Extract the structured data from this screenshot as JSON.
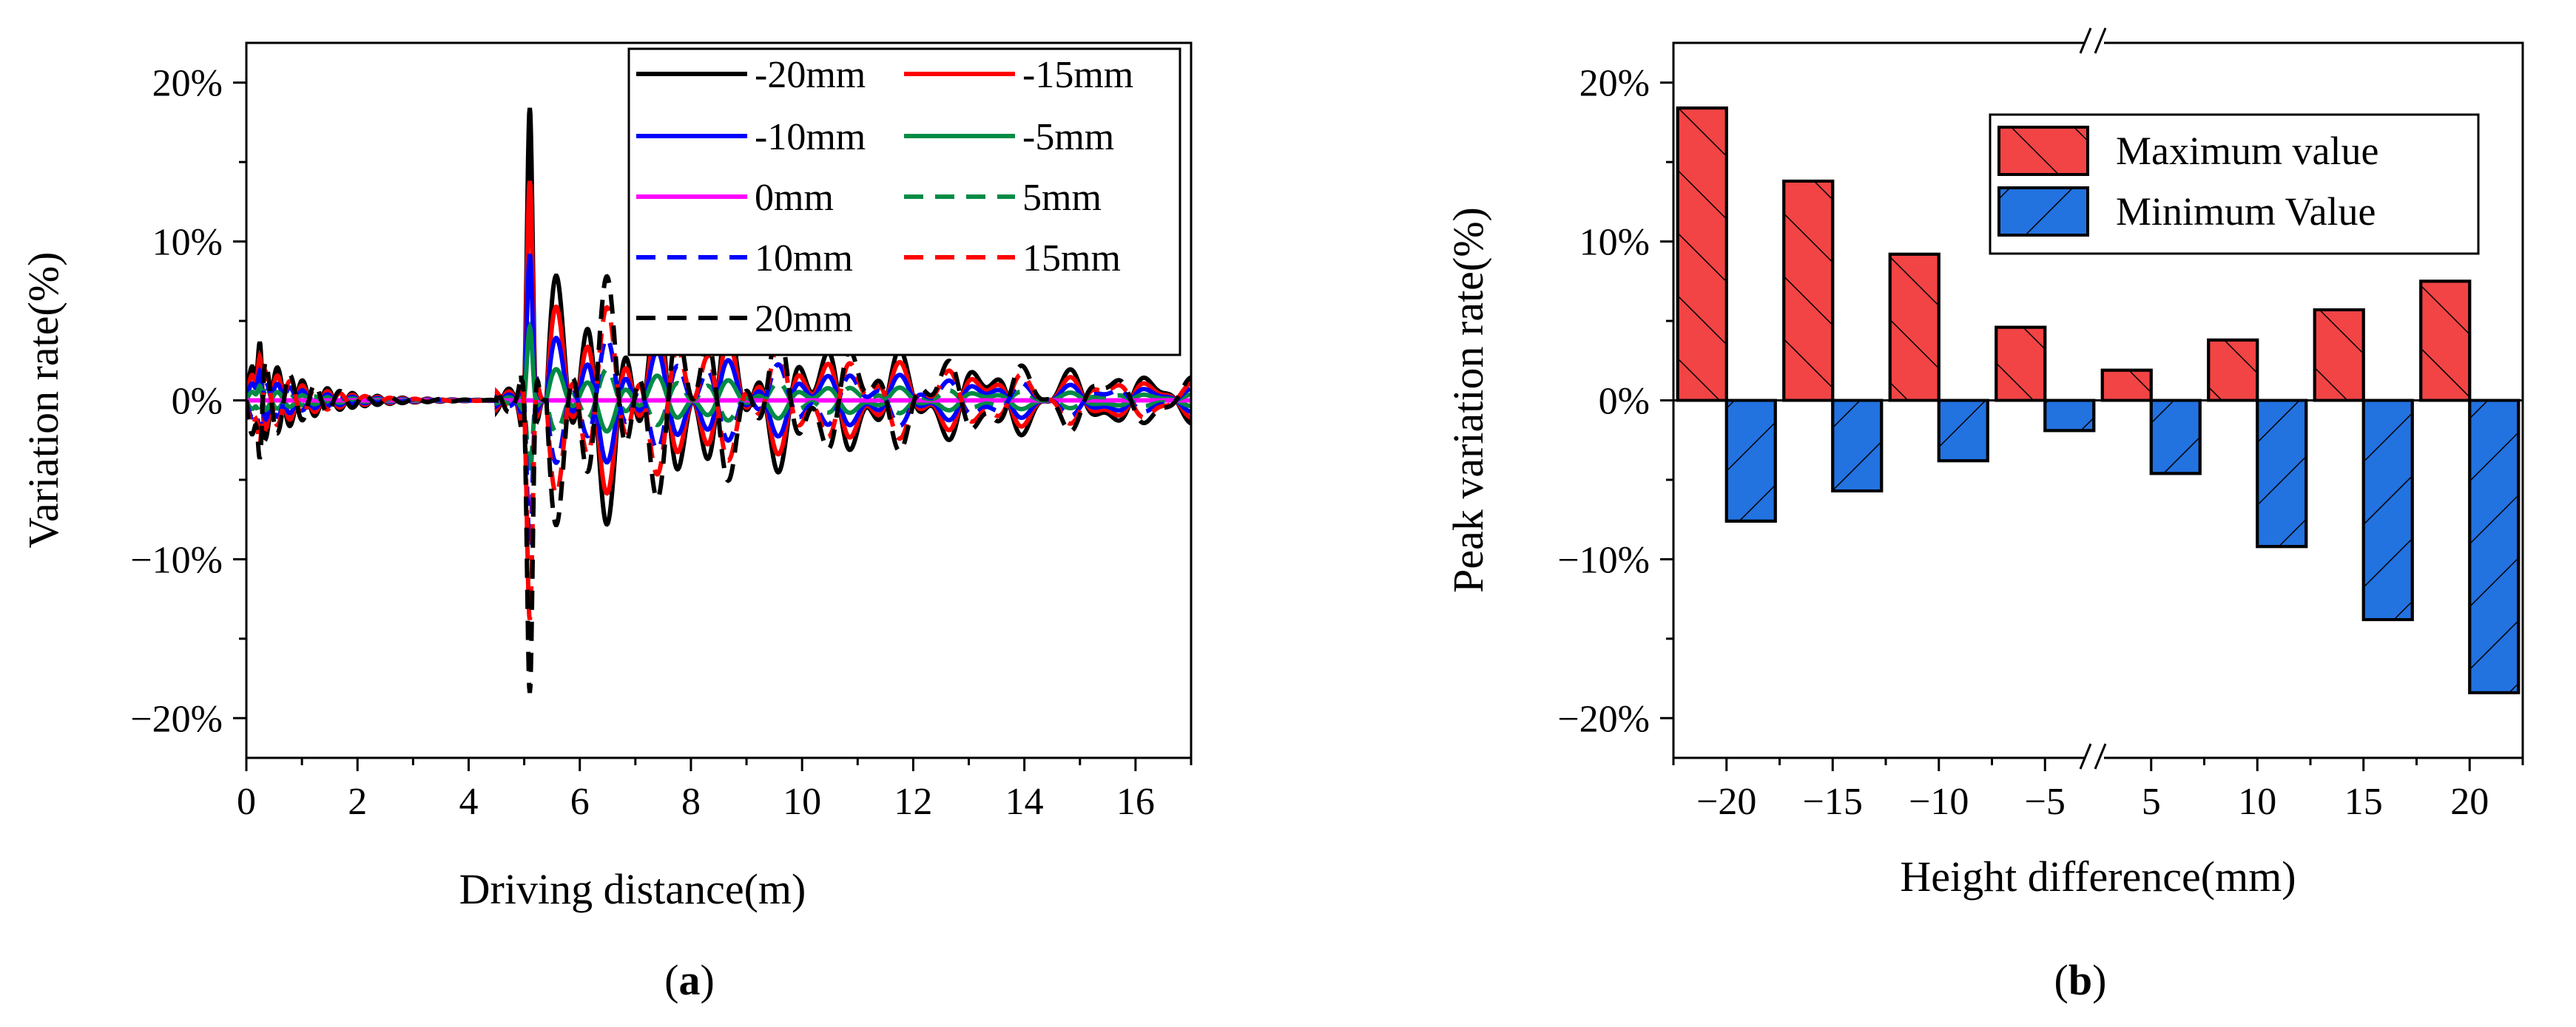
{
  "charts": {
    "a": {
      "label": "a",
      "type": "line",
      "xlabel": "Driving distance(m)",
      "ylabel": "Variation rate(%)",
      "xlim": [
        0,
        17
      ],
      "ylim": [
        -22.5,
        22.5
      ],
      "xticks": [
        {
          "value": 0,
          "label": "0"
        },
        {
          "value": 2,
          "label": "2"
        },
        {
          "value": 4,
          "label": "4"
        },
        {
          "value": 6,
          "label": "6"
        },
        {
          "value": 8,
          "label": "8"
        },
        {
          "value": 10,
          "label": "10"
        },
        {
          "value": 12,
          "label": "12"
        },
        {
          "value": 14,
          "label": "14"
        },
        {
          "value": 16,
          "label": "16"
        }
      ],
      "yticks": [
        {
          "value": 20,
          "label": "20%"
        },
        {
          "value": 10,
          "label": "10%"
        },
        {
          "value": 0,
          "label": "0%"
        },
        {
          "value": -10,
          "label": "−10%"
        },
        {
          "value": -20,
          "label": "−20%"
        }
      ],
      "series": [
        {
          "name": "-20mm",
          "height": -20,
          "color": "#000000",
          "dash": "solid"
        },
        {
          "name": "-15mm",
          "height": -15,
          "color": "#ff0000",
          "dash": "solid"
        },
        {
          "name": "-10mm",
          "height": -10,
          "color": "#0000ff",
          "dash": "solid"
        },
        {
          "name": "-5mm",
          "height": -5,
          "color": "#008b45",
          "dash": "solid"
        },
        {
          "name": "0mm",
          "height": 0,
          "color": "#ff00ff",
          "dash": "solid"
        },
        {
          "name": "5mm",
          "height": 5,
          "color": "#008b45",
          "dash": "dashed"
        },
        {
          "name": "10mm",
          "height": 10,
          "color": "#0000ff",
          "dash": "dashed"
        },
        {
          "name": "15mm",
          "height": 15,
          "color": "#ff0000",
          "dash": "dashed"
        },
        {
          "name": "20mm",
          "height": 20,
          "color": "#000000",
          "dash": "dashed"
        }
      ],
      "peak_at_bump": {
        "x_m": 5.1,
        "values": {
          "-20": 18.4,
          "-15": 13.8,
          "-10": 9.2,
          "-5": 4.6,
          "0": 0,
          "5": -4.6,
          "10": -9.2,
          "15": -13.8,
          "20": -18.4
        }
      },
      "entry_spike": {
        "x_m": 0.25,
        "max_value": 4.3
      },
      "oscillation_period_m": 1.5
    },
    "b": {
      "label": "b",
      "type": "bar",
      "xlabel": "Height difference(mm)",
      "ylabel": "Peak variation rate(%)",
      "ylim": [
        -22.5,
        22.5
      ],
      "yticks": [
        {
          "value": 20,
          "label": "20%"
        },
        {
          "value": 10,
          "label": "10%"
        },
        {
          "value": 0,
          "label": "0%"
        },
        {
          "value": -10,
          "label": "−10%"
        },
        {
          "value": -20,
          "label": "−20%"
        }
      ],
      "categories": [
        "−20",
        "−15",
        "−10",
        "−5",
        "5",
        "10",
        "15",
        "20"
      ],
      "series": [
        {
          "name": "Maximum value",
          "color": "#f24444",
          "values": [
            18.4,
            13.8,
            9.2,
            4.6,
            1.9,
            3.8,
            5.7,
            7.5
          ]
        },
        {
          "name": "Minimum Value",
          "color": "#2272e0",
          "values": [
            -7.6,
            -5.7,
            -3.8,
            -1.9,
            -4.6,
            -9.2,
            -13.8,
            -18.4
          ]
        }
      ],
      "axis_break": "//"
    }
  }
}
